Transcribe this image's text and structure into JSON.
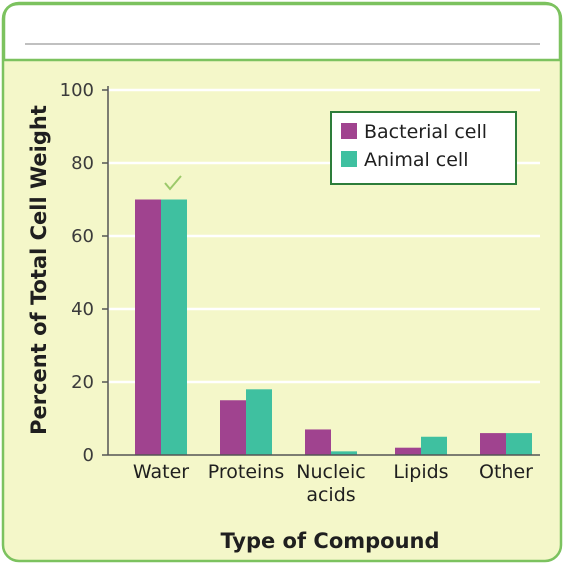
{
  "colors": {
    "frame": "#7cc25f",
    "panel_bg": "#f4f7c9",
    "header_bg": "#ffffff",
    "header_rule": "#9a9a9a",
    "gridline": "#ffffff",
    "axis": "#555555",
    "legend_bg": "#ffffff",
    "legend_border": "#2d7d3a",
    "check_mark": "#9cc96a"
  },
  "chart_data": {
    "type": "bar",
    "xlabel": "Type of Compound",
    "ylabel": "Percent of Total Cell Weight",
    "ylim": [
      0,
      100
    ],
    "yticks": [
      0,
      20,
      40,
      60,
      80,
      100
    ],
    "grid": true,
    "legend_position": "top-right",
    "categories": [
      {
        "lines": [
          "Water"
        ]
      },
      {
        "lines": [
          "Proteins"
        ]
      },
      {
        "lines": [
          "Nucleic",
          "acids"
        ]
      },
      {
        "lines": [
          "Lipids"
        ]
      },
      {
        "lines": [
          "Other"
        ]
      }
    ],
    "series": [
      {
        "name": "Bacterial cell",
        "color": "#a0438f",
        "values": [
          70,
          15,
          7,
          2,
          6
        ]
      },
      {
        "name": "Animal cell",
        "color": "#3fc0a0",
        "values": [
          70,
          18,
          1,
          5,
          6
        ]
      }
    ]
  }
}
